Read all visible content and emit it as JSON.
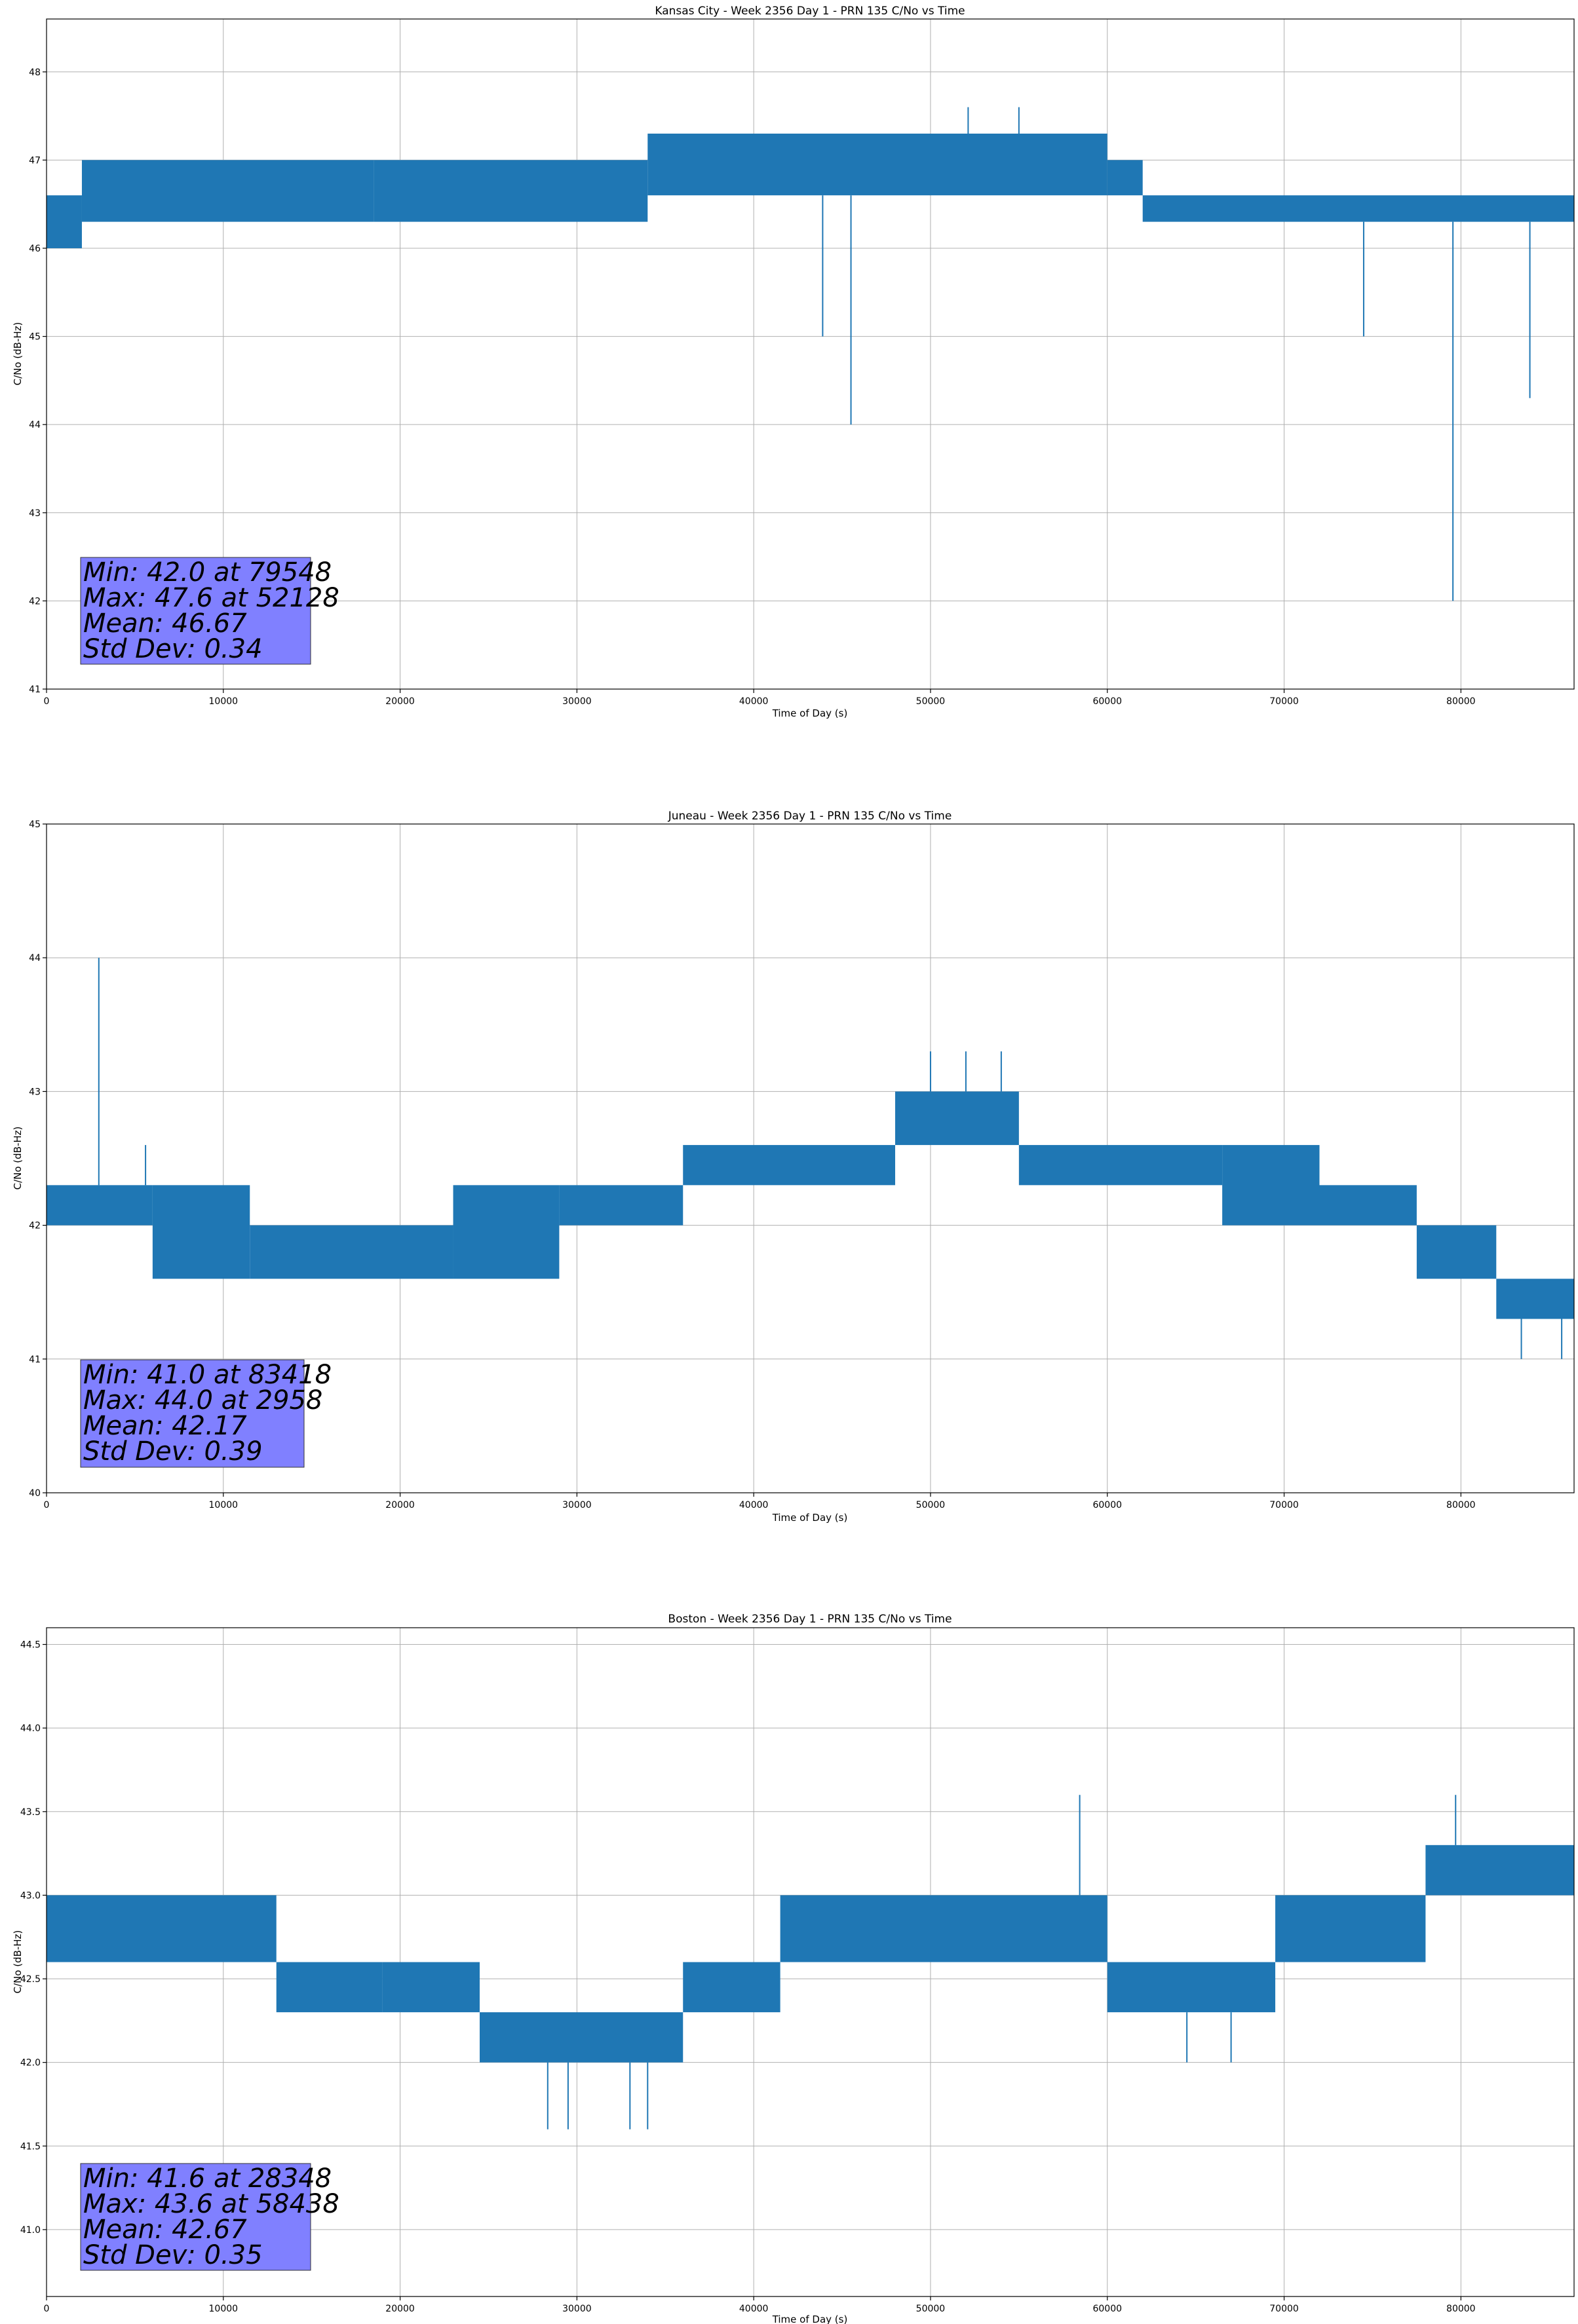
{
  "chart_data": [
    {
      "type": "line",
      "title": "Kansas City - Week 2356 Day 1 - PRN 135 C/No vs Time",
      "xlabel": "Time of Day (s)",
      "ylabel": "C/No (dB-Hz)",
      "xlim": [
        0,
        86400
      ],
      "ylim": [
        41,
        48.6
      ],
      "grid": true,
      "x_ticks": [
        0,
        10000,
        20000,
        30000,
        40000,
        50000,
        60000,
        70000,
        80000
      ],
      "y_ticks": [
        41,
        42,
        43,
        44,
        45,
        46,
        47,
        48
      ],
      "y_tick_labels": [
        "41",
        "42",
        "43",
        "44",
        "45",
        "46",
        "47",
        "48"
      ],
      "series": [
        {
          "name": "C/No",
          "color": "#1f77b4",
          "bands": [
            {
              "x": [
                0,
                2000
              ],
              "low": 46.0,
              "high": 46.6
            },
            {
              "x": [
                2000,
                18500
              ],
              "low": 46.3,
              "high": 47.0
            },
            {
              "x": [
                18500,
                34000
              ],
              "low": 46.3,
              "high": 47.0
            },
            {
              "x": [
                34000,
                48000
              ],
              "low": 46.6,
              "high": 47.3
            },
            {
              "x": [
                48000,
                60000
              ],
              "low": 46.6,
              "high": 47.3
            },
            {
              "x": [
                60000,
                62000
              ],
              "low": 46.6,
              "high": 47.0
            },
            {
              "x": [
                62000,
                86400
              ],
              "low": 46.3,
              "high": 46.6
            }
          ],
          "spikes": [
            {
              "x": 43900,
              "y": 45.0
            },
            {
              "x": 45500,
              "y": 44.0
            },
            {
              "x": 52128,
              "y": 47.6
            },
            {
              "x": 55000,
              "y": 47.6
            },
            {
              "x": 74500,
              "y": 45.0
            },
            {
              "x": 79548,
              "y": 42.0
            },
            {
              "x": 83900,
              "y": 44.3
            }
          ]
        }
      ],
      "stats": [
        "Min: 42.0 at 79548",
        "Max: 47.6 at 52128",
        "Mean: 46.67",
        "Std Dev: 0.34"
      ]
    },
    {
      "type": "line",
      "title": "Juneau - Week 2356 Day 1 - PRN 135 C/No vs Time",
      "xlabel": "Time of Day (s)",
      "ylabel": "C/No (dB-Hz)",
      "xlim": [
        0,
        86400
      ],
      "ylim": [
        40,
        45
      ],
      "grid": true,
      "x_ticks": [
        0,
        10000,
        20000,
        30000,
        40000,
        50000,
        60000,
        70000,
        80000
      ],
      "y_ticks": [
        40,
        41,
        42,
        43,
        44,
        45
      ],
      "y_tick_labels": [
        "40",
        "41",
        "42",
        "43",
        "44",
        "45"
      ],
      "series": [
        {
          "name": "C/No",
          "color": "#1f77b4",
          "bands": [
            {
              "x": [
                0,
                6000
              ],
              "low": 42.0,
              "high": 42.3
            },
            {
              "x": [
                6000,
                11500
              ],
              "low": 41.6,
              "high": 42.3
            },
            {
              "x": [
                11500,
                23000
              ],
              "low": 41.6,
              "high": 42.0
            },
            {
              "x": [
                23000,
                29000
              ],
              "low": 41.6,
              "high": 42.3
            },
            {
              "x": [
                29000,
                36000
              ],
              "low": 42.0,
              "high": 42.3
            },
            {
              "x": [
                36000,
                48000
              ],
              "low": 42.3,
              "high": 42.6
            },
            {
              "x": [
                48000,
                55000
              ],
              "low": 42.6,
              "high": 43.0
            },
            {
              "x": [
                55000,
                66500
              ],
              "low": 42.3,
              "high": 42.6
            },
            {
              "x": [
                66500,
                72000
              ],
              "low": 42.0,
              "high": 42.6
            },
            {
              "x": [
                72000,
                77500
              ],
              "low": 42.0,
              "high": 42.3
            },
            {
              "x": [
                77500,
                82000
              ],
              "low": 41.6,
              "high": 42.0
            },
            {
              "x": [
                82000,
                86400
              ],
              "low": 41.3,
              "high": 41.6
            }
          ],
          "spikes": [
            {
              "x": 2958,
              "y": 44.0
            },
            {
              "x": 5600,
              "y": 42.6
            },
            {
              "x": 50000,
              "y": 43.3
            },
            {
              "x": 52000,
              "y": 43.3
            },
            {
              "x": 54000,
              "y": 43.3
            },
            {
              "x": 83418,
              "y": 41.0
            },
            {
              "x": 85700,
              "y": 41.0
            }
          ]
        }
      ],
      "stats": [
        "Min: 41.0 at 83418",
        "Max: 44.0 at 2958",
        "Mean: 42.17",
        "Std Dev: 0.39"
      ]
    },
    {
      "type": "line",
      "title": "Boston - Week 2356 Day 1 - PRN 135 C/No vs Time",
      "xlabel": "Time of Day (s)",
      "ylabel": "C/No (dB-Hz)",
      "xlim": [
        0,
        86400
      ],
      "ylim": [
        40.6,
        44.6
      ],
      "grid": true,
      "x_ticks": [
        0,
        10000,
        20000,
        30000,
        40000,
        50000,
        60000,
        70000,
        80000
      ],
      "y_ticks": [
        41.0,
        41.5,
        42.0,
        42.5,
        43.0,
        43.5,
        44.0,
        44.5
      ],
      "y_tick_labels": [
        "41.0",
        "41.5",
        "42.0",
        "42.5",
        "43.0",
        "43.5",
        "44.0",
        "44.5"
      ],
      "series": [
        {
          "name": "C/No",
          "color": "#1f77b4",
          "bands": [
            {
              "x": [
                0,
                13000
              ],
              "low": 42.6,
              "high": 43.0
            },
            {
              "x": [
                13000,
                19000
              ],
              "low": 42.3,
              "high": 42.6
            },
            {
              "x": [
                19000,
                24500
              ],
              "low": 42.3,
              "high": 42.6
            },
            {
              "x": [
                24500,
                36000
              ],
              "low": 42.0,
              "high": 42.3
            },
            {
              "x": [
                36000,
                41500
              ],
              "low": 42.3,
              "high": 42.6
            },
            {
              "x": [
                41500,
                60000
              ],
              "low": 42.6,
              "high": 43.0
            },
            {
              "x": [
                60000,
                69500
              ],
              "low": 42.3,
              "high": 42.6
            },
            {
              "x": [
                69500,
                78000
              ],
              "low": 42.6,
              "high": 43.0
            },
            {
              "x": [
                78000,
                86400
              ],
              "low": 43.0,
              "high": 43.3
            }
          ],
          "spikes": [
            {
              "x": 28348,
              "y": 41.6
            },
            {
              "x": 29500,
              "y": 41.6
            },
            {
              "x": 33000,
              "y": 41.6
            },
            {
              "x": 34000,
              "y": 41.6
            },
            {
              "x": 58438,
              "y": 43.6
            },
            {
              "x": 79700,
              "y": 43.6
            },
            {
              "x": 64500,
              "y": 42.0
            },
            {
              "x": 67000,
              "y": 42.0
            }
          ]
        }
      ],
      "stats": [
        "Min: 41.6 at 28348",
        "Max: 43.6 at 58438",
        "Mean: 42.67",
        "Std Dev: 0.35"
      ]
    }
  ]
}
